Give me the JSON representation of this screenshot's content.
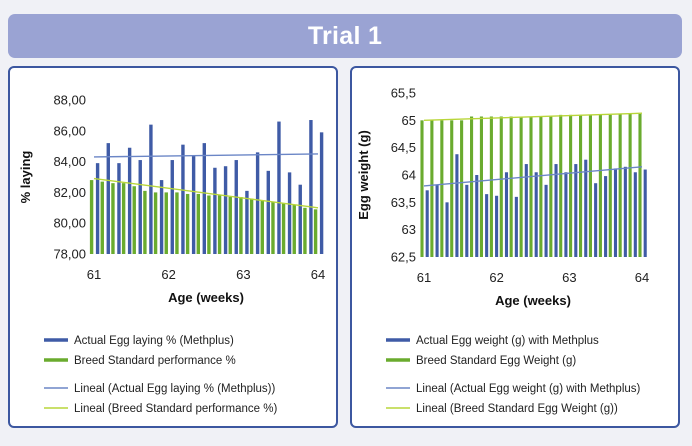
{
  "banner": {
    "title": "Trial 1"
  },
  "colors": {
    "background": "#f0f1f6",
    "banner": "#9aa3d3",
    "panel_border": "#3c57a0",
    "actual": "#3f5ba6",
    "standard": "#6aab2e",
    "trend_actual": "#6b86c6",
    "trend_standard": "#b9d63a"
  },
  "chart_data": [
    {
      "type": "bar",
      "title": "",
      "xlabel": "Age (weeks)",
      "ylabel": "% laying",
      "xlim": [
        61,
        64
      ],
      "ylim": [
        78,
        88
      ],
      "yticks": [
        78,
        80,
        82,
        84,
        86,
        88
      ],
      "ytick_labels": [
        "78,00",
        "80,00",
        "82,00",
        "84,00",
        "86,00",
        "88,00"
      ],
      "xticks": [
        61,
        62,
        63,
        64
      ],
      "xtick_labels": [
        "61",
        "62",
        "63",
        "64"
      ],
      "x": [
        61.0,
        61.143,
        61.286,
        61.429,
        61.571,
        61.714,
        61.857,
        62.0,
        62.143,
        62.286,
        62.429,
        62.571,
        62.714,
        62.857,
        63.0,
        63.143,
        63.286,
        63.429,
        63.571,
        63.714,
        63.857,
        64.0
      ],
      "series": [
        {
          "name": "Actual Egg laying % (Methplus)",
          "values": [
            83.9,
            85.2,
            83.9,
            84.9,
            84.1,
            86.4,
            82.8,
            84.1,
            85.1,
            84.4,
            85.2,
            83.6,
            83.7,
            84.1,
            82.1,
            84.6,
            83.4,
            86.6,
            83.3,
            82.5,
            86.7,
            85.9
          ]
        },
        {
          "name": "Breed Standard performance %",
          "values": [
            82.8,
            82.7,
            82.6,
            82.6,
            82.4,
            82.1,
            82.0,
            82.0,
            82.0,
            81.9,
            81.9,
            81.8,
            81.8,
            81.7,
            81.7,
            81.6,
            81.5,
            81.4,
            81.3,
            81.2,
            81.0,
            80.9
          ]
        }
      ],
      "trendlines": [
        {
          "name": "Lineal (Actual Egg laying % (Methplus))",
          "start": 84.3,
          "end": 84.5
        },
        {
          "name": "Lineal (Breed Standard performance %)",
          "start": 82.9,
          "end": 81.0
        }
      ]
    },
    {
      "type": "bar",
      "title": "",
      "xlabel": "Age (weeks)",
      "ylabel": "Egg weight (g)",
      "xlim": [
        61,
        64
      ],
      "ylim": [
        62.5,
        65.5
      ],
      "yticks": [
        62.5,
        63,
        63.5,
        64,
        64.5,
        65,
        65.5
      ],
      "ytick_labels": [
        "62,5",
        "63",
        "63,5",
        "64",
        "64,5",
        "65",
        "65,5"
      ],
      "xticks": [
        61,
        62,
        63,
        64
      ],
      "xtick_labels": [
        "61",
        "62",
        "63",
        "64"
      ],
      "x": [
        61.0,
        61.136,
        61.273,
        61.409,
        61.545,
        61.682,
        61.818,
        61.955,
        62.091,
        62.227,
        62.364,
        62.5,
        62.636,
        62.773,
        62.909,
        63.045,
        63.182,
        63.318,
        63.455,
        63.591,
        63.727,
        63.864,
        64.0
      ],
      "series": [
        {
          "name": "Actual Egg weight (g) with Methplus",
          "values": [
            63.72,
            63.82,
            63.5,
            64.38,
            63.82,
            64.0,
            63.65,
            63.62,
            64.05,
            63.6,
            64.2,
            64.05,
            63.82,
            64.2,
            64.05,
            64.2,
            64.28,
            63.85,
            63.98,
            64.12,
            64.15,
            64.05,
            64.1
          ]
        },
        {
          "name": "Breed Standard Egg Weight (g)",
          "values": [
            65.0,
            65.0,
            65.0,
            65.0,
            65.0,
            65.07,
            65.07,
            65.07,
            65.07,
            65.07,
            65.07,
            65.07,
            65.07,
            65.07,
            65.1,
            65.1,
            65.1,
            65.1,
            65.1,
            65.1,
            65.12,
            65.12,
            65.12
          ]
        }
      ],
      "trendlines": [
        {
          "name": "Lineal (Actual Egg weight (g) with Methplus)",
          "start": 63.8,
          "end": 64.15
        },
        {
          "name": "Lineal (Breed Standard Egg Weight (g))",
          "start": 65.0,
          "end": 65.13
        }
      ]
    }
  ]
}
